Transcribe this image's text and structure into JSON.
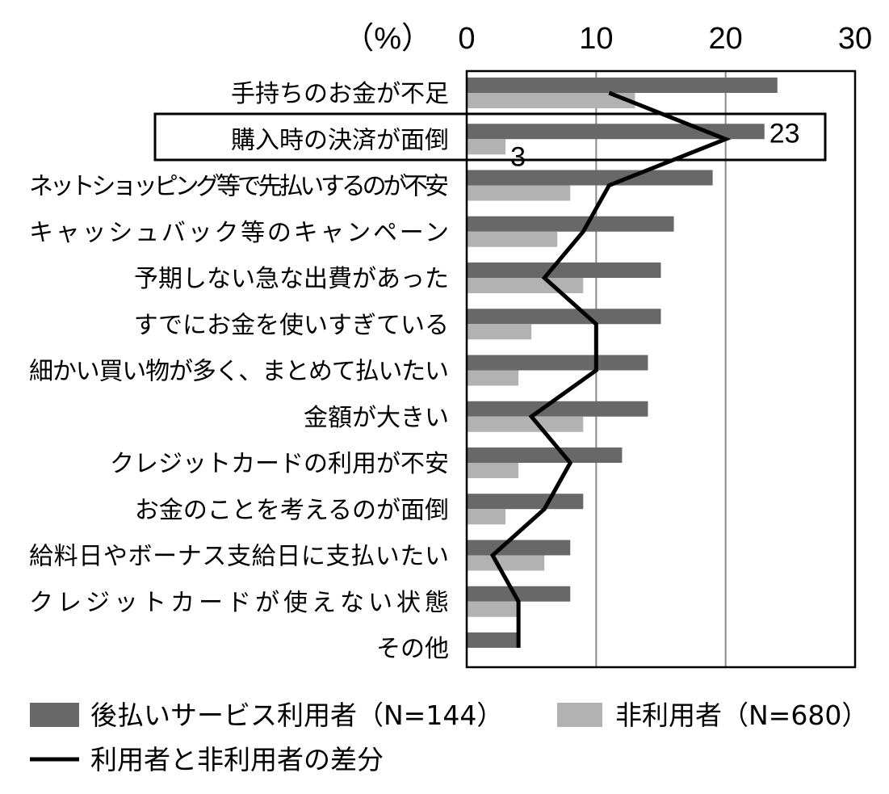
{
  "chart_data": {
    "type": "bar",
    "orientation": "horizontal",
    "unit_label": "（%）",
    "xlim": [
      0,
      30
    ],
    "x_ticks": [
      "0",
      "10",
      "20",
      "30"
    ],
    "grid": true,
    "legend_placement": "bottom",
    "categories": [
      "手持ちのお金が不足",
      "購入時の決済が面倒",
      "ネットショッピング等で先払いするのが不安",
      "キャッシュバック等のキャンペーン",
      "予期しない急な出費があった",
      "すでにお金を使いすぎている",
      "細かい買い物が多く、まとめて払いたい",
      "金額が大きい",
      "クレジットカードの利用が不安",
      "お金のことを考えるのが面倒",
      "給料日やボーナス支給日に支払いたい",
      "クレジットカードが使えない状態",
      "その他"
    ],
    "series": [
      {
        "name": "後払いサービス利用者（N=144）",
        "type": "bar",
        "color": "#686868",
        "values": [
          24,
          23,
          19,
          16,
          15,
          15,
          14,
          14,
          12,
          9,
          8,
          8,
          4
        ]
      },
      {
        "name": "非利用者（N=680）",
        "type": "bar",
        "color": "#b2b2b2",
        "values": [
          13,
          3,
          8,
          7,
          9,
          5,
          4,
          9,
          4,
          3,
          6,
          4,
          0
        ]
      },
      {
        "name": "利用者と非利用者の差分",
        "type": "line",
        "color": "#000000",
        "values": [
          11,
          20,
          11,
          9,
          6,
          10,
          10,
          5,
          8,
          6,
          2,
          4,
          4
        ]
      }
    ],
    "data_labels": [
      {
        "category_index": 1,
        "series_index": 0,
        "text": "23"
      },
      {
        "category_index": 1,
        "series_index": 1,
        "text": "3"
      }
    ],
    "highlighted_category_index": 1
  }
}
